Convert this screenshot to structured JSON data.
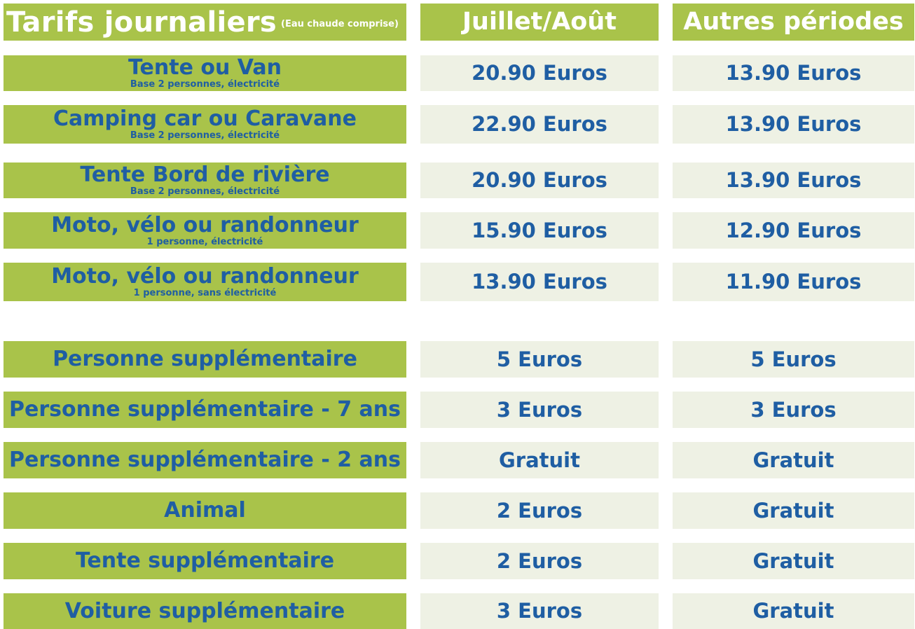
{
  "header": {
    "title": "Tarifs journaliers",
    "subtitle": "(Eau chaude comprise)",
    "col_peak": "Juillet/Août",
    "col_other": "Autres périodes"
  },
  "rows": [
    {
      "label": "Tente ou Van",
      "sub": "Base 2 personnes, électricité",
      "peak": "20.90 Euros",
      "other": "13.90 Euros"
    },
    {
      "label": "Camping car ou Caravane",
      "sub": "Base 2 personnes, électricité",
      "peak": "22.90 Euros",
      "other": "13.90 Euros"
    },
    {
      "label": "Tente Bord de rivière",
      "sub": "Base 2 personnes, électricité",
      "peak": "20.90 Euros",
      "other": "13.90 Euros"
    },
    {
      "label": "Moto, vélo ou randonneur",
      "sub": "1 personne, électricité",
      "peak": "15.90 Euros",
      "other": "12.90 Euros"
    },
    {
      "label": "Moto, vélo ou randonneur",
      "sub": "1 personne, sans électricité",
      "peak": "13.90 Euros",
      "other": "11.90 Euros"
    },
    {
      "label": "Personne supplémentaire",
      "sub": "",
      "peak": "5 Euros",
      "other": "5 Euros"
    },
    {
      "label": "Personne supplémentaire - 7 ans",
      "sub": "",
      "peak": "3 Euros",
      "other": "3 Euros"
    },
    {
      "label": "Personne supplémentaire - 2 ans",
      "sub": "",
      "peak": "Gratuit",
      "other": "Gratuit"
    },
    {
      "label": "Animal",
      "sub": "",
      "peak": "2 Euros",
      "other": "Gratuit"
    },
    {
      "label": "Tente supplémentaire",
      "sub": "",
      "peak": "2 Euros",
      "other": "Gratuit"
    },
    {
      "label": "Voiture supplémentaire",
      "sub": "",
      "peak": "3 Euros",
      "other": "Gratuit"
    }
  ],
  "colors": {
    "header_green": "#a9c34a",
    "price_bg": "#eef1e4",
    "text_blue": "#1f5ea3"
  }
}
